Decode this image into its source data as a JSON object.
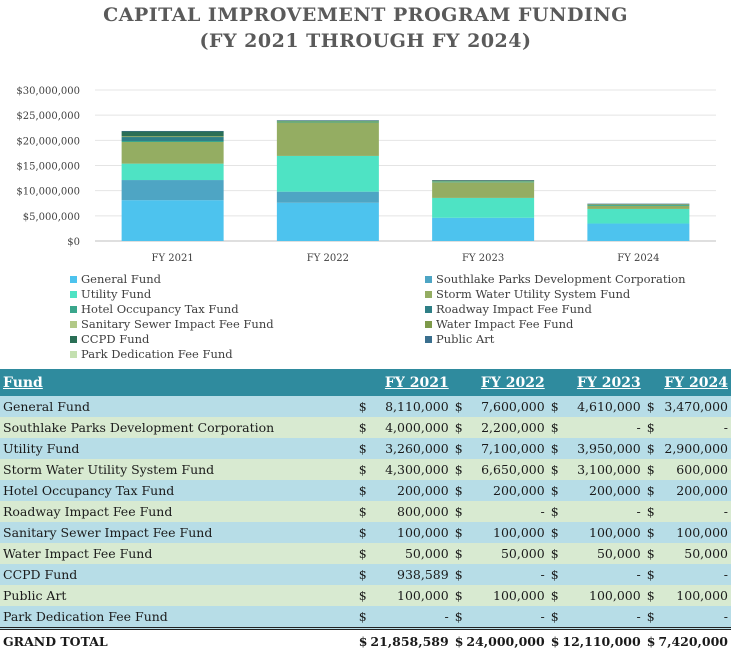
{
  "title_line1": "CAPITAL IMPROVEMENT PROGRAM FUNDING",
  "title_line2": "(FY 2021 THROUGH FY 2024)",
  "chart_data": {
    "type": "bar",
    "stacked": true,
    "title": "CAPITAL IMPROVEMENT PROGRAM FUNDING (FY 2021 THROUGH FY 2024)",
    "categories": [
      "FY 2021",
      "FY 2022",
      "FY 2023",
      "FY 2024"
    ],
    "ylim": [
      0,
      30000000
    ],
    "yticks": [
      "$0",
      "$5,000,000",
      "$10,000,000",
      "$15,000,000",
      "$20,000,000",
      "$25,000,000",
      "$30,000,000"
    ],
    "legend_position": "bottom",
    "series": [
      {
        "name": "General Fund",
        "color": "#4dc3ee",
        "values": [
          8110000,
          7600000,
          4610000,
          3470000
        ]
      },
      {
        "name": "Southlake Parks Development Corporation",
        "color": "#4ea5c4",
        "values": [
          4000000,
          2200000,
          0,
          0
        ]
      },
      {
        "name": "Utility Fund",
        "color": "#4ee3c4",
        "values": [
          3260000,
          7100000,
          3950000,
          2900000
        ]
      },
      {
        "name": "Storm Water Utility System Fund",
        "color": "#94ad62",
        "values": [
          4300000,
          6650000,
          3100000,
          600000
        ]
      },
      {
        "name": "Hotel Occupancy Tax Fund",
        "color": "#3aa68c",
        "values": [
          200000,
          200000,
          200000,
          200000
        ]
      },
      {
        "name": "Roadway Impact Fee Fund",
        "color": "#2e7f86",
        "values": [
          800000,
          0,
          0,
          0
        ]
      },
      {
        "name": "Sanitary Sewer Impact Fee Fund",
        "color": "#b2c987",
        "values": [
          100000,
          100000,
          100000,
          100000
        ]
      },
      {
        "name": "Water Impact Fee Fund",
        "color": "#7e9a4a",
        "values": [
          50000,
          50000,
          50000,
          50000
        ]
      },
      {
        "name": "CCPD Fund",
        "color": "#2a6f56",
        "values": [
          938589,
          0,
          0,
          0
        ]
      },
      {
        "name": "Public Art",
        "color": "#3a6f8e",
        "values": [
          100000,
          100000,
          100000,
          100000
        ]
      },
      {
        "name": "Park Dedication Fee Fund",
        "color": "#c4e0b0",
        "values": [
          0,
          0,
          0,
          0
        ]
      }
    ]
  },
  "table": {
    "header": {
      "fund": "Fund",
      "years": [
        "FY 2021",
        "FY 2022",
        "FY 2023",
        "FY 2024"
      ]
    },
    "currency": "$",
    "rows": [
      {
        "fund": "General Fund",
        "values": [
          "8,110,000",
          "7,600,000",
          "4,610,000",
          "3,470,000"
        ]
      },
      {
        "fund": "Southlake Parks Development Corporation",
        "values": [
          "4,000,000",
          "2,200,000",
          "-",
          "-"
        ]
      },
      {
        "fund": "Utility Fund",
        "values": [
          "3,260,000",
          "7,100,000",
          "3,950,000",
          "2,900,000"
        ]
      },
      {
        "fund": "Storm Water Utility System Fund",
        "values": [
          "4,300,000",
          "6,650,000",
          "3,100,000",
          "600,000"
        ]
      },
      {
        "fund": "Hotel Occupancy Tax Fund",
        "values": [
          "200,000",
          "200,000",
          "200,000",
          "200,000"
        ]
      },
      {
        "fund": "Roadway Impact Fee Fund",
        "values": [
          "800,000",
          "-",
          "-",
          "-"
        ]
      },
      {
        "fund": "Sanitary Sewer Impact Fee Fund",
        "values": [
          "100,000",
          "100,000",
          "100,000",
          "100,000"
        ]
      },
      {
        "fund": "Water Impact Fee Fund",
        "values": [
          "50,000",
          "50,000",
          "50,000",
          "50,000"
        ]
      },
      {
        "fund": "CCPD Fund",
        "values": [
          "938,589",
          "-",
          "-",
          "-"
        ]
      },
      {
        "fund": "Public Art",
        "values": [
          "100,000",
          "100,000",
          "100,000",
          "100,000"
        ]
      },
      {
        "fund": "Park Dedication Fee Fund",
        "values": [
          "-",
          "-",
          "-",
          "-"
        ]
      }
    ],
    "total": {
      "fund": "GRAND TOTAL",
      "values": [
        "21,858,589",
        "24,000,000",
        "12,110,000",
        "7,420,000"
      ]
    }
  }
}
